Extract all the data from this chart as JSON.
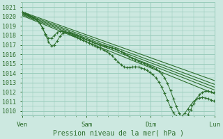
{
  "bg_color": "#cce8e0",
  "grid_color": "#99ccbb",
  "line_color": "#2d6e2d",
  "marker_color": "#2d6e2d",
  "ylabel_ticks": [
    1010,
    1011,
    1012,
    1013,
    1014,
    1015,
    1016,
    1017,
    1018,
    1019,
    1020,
    1021
  ],
  "xlabels": [
    "Ven",
    "Sam",
    "Dim",
    "Lun"
  ],
  "xlabel_text": "Pression niveau de la mer( hPa )",
  "ymin": 1009.5,
  "ymax": 1021.5,
  "xmin": 0,
  "xmax": 72
}
